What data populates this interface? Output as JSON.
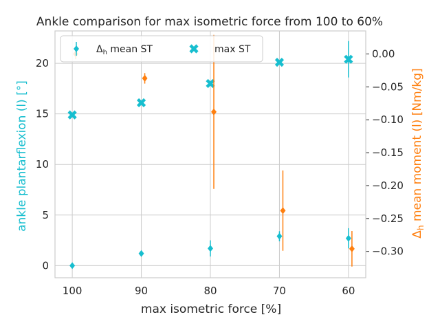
{
  "chart_data": {
    "type": "scatter",
    "title": "Ankle comparison for max isometric force from 100 to 60%",
    "xlabel": "max isometric force [%]",
    "ylabel_left": "ankle plantarflexion (l) [°]",
    "ylabel_right_prefix": "Δ",
    "ylabel_right_sub": "h",
    "ylabel_right_rest": " mean moment (l) [Nm/kg]",
    "x_categories": [
      "100",
      "90",
      "80",
      "70",
      "60"
    ],
    "x_values": [
      100,
      90,
      80,
      70,
      60
    ],
    "xlim": [
      102.5,
      57.5
    ],
    "ylim_left": [
      -1.2,
      23.2
    ],
    "ylim_right": [
      -0.34,
      0.035
    ],
    "left_ticks": [
      0,
      5,
      10,
      15,
      20
    ],
    "right_ticks": [
      0.0,
      -0.05,
      -0.1,
      -0.15,
      -0.2,
      -0.25,
      -0.3
    ],
    "right_tick_labels": [
      "0.00",
      "−0.05",
      "−0.10",
      "−0.15",
      "−0.20",
      "−0.25",
      "−0.30"
    ],
    "grid": true,
    "legend_placement": "top-left",
    "colors": {
      "teal": "#17becf",
      "orange": "#ff7f0e",
      "grid": "#cccccc",
      "text": "#262626"
    },
    "series": [
      {
        "name_prefix": "Δ",
        "name_sub": "h",
        "name_rest": " mean ST",
        "axis": "left",
        "marker": "diamond",
        "color": "#17becf",
        "x": [
          100,
          90,
          80,
          70,
          60
        ],
        "y": [
          0.0,
          1.2,
          1.7,
          2.9,
          2.7
        ],
        "yerr": [
          0.0,
          0.25,
          0.8,
          0.5,
          1.0
        ]
      },
      {
        "name": "max ST",
        "axis": "left",
        "marker": "x",
        "color": "#17becf",
        "x": [
          100,
          90,
          80,
          70,
          60
        ],
        "y": [
          14.9,
          16.1,
          18.0,
          20.1,
          20.4
        ],
        "yerr": [
          0.0,
          0.0,
          0.0,
          0.0,
          1.8
        ]
      },
      {
        "name": "",
        "axis": "right",
        "marker": "diamond",
        "color": "#ff7f0e",
        "x": [
          99.5,
          89.5,
          79.5,
          69.5,
          59.5
        ],
        "y": [
          0.0,
          -0.037,
          -0.088,
          -0.238,
          -0.296
        ],
        "yerr": [
          0.008,
          0.008,
          0.117,
          0.061,
          0.027
        ]
      }
    ]
  }
}
